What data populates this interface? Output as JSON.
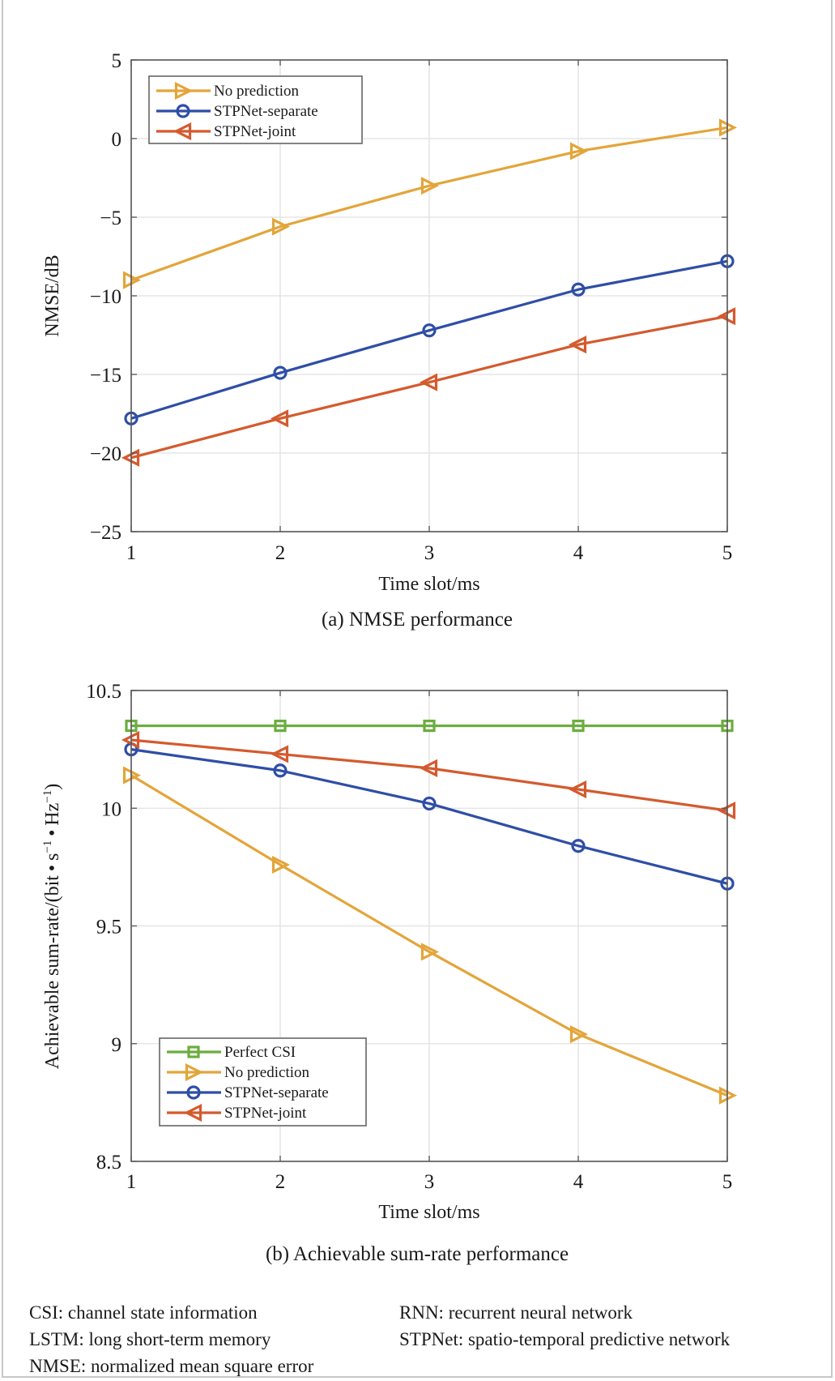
{
  "chart_data": [
    {
      "type": "line",
      "id": "a",
      "title": "",
      "caption": "(a) NMSE performance",
      "xlabel": "Time slot/ms",
      "ylabel": "NMSE/dB",
      "x": [
        1,
        2,
        3,
        4,
        5
      ],
      "xlim": [
        1,
        5
      ],
      "ylim": [
        -25,
        5
      ],
      "xticks": [
        "1",
        "2",
        "3",
        "4",
        "5"
      ],
      "yticks": [
        5,
        0,
        -5,
        -10,
        -15,
        -20,
        -25
      ],
      "ytick_labels": [
        "5",
        "0",
        "−5",
        "−10",
        "−15",
        "−20",
        "−25"
      ],
      "grid": true,
      "legend_position": "top-left",
      "series": [
        {
          "name": "No prediction",
          "color": "#E3A53A",
          "marker": "triangle-right",
          "values": [
            -9.0,
            -5.6,
            -3.0,
            -0.8,
            0.7
          ]
        },
        {
          "name": "STPNet-separate",
          "color": "#2E4EA6",
          "marker": "circle",
          "values": [
            -17.8,
            -14.9,
            -12.2,
            -9.6,
            -7.8
          ]
        },
        {
          "name": "STPNet-joint",
          "color": "#D45A2E",
          "marker": "triangle-left",
          "values": [
            -20.3,
            -17.8,
            -15.5,
            -13.1,
            -11.3
          ]
        }
      ]
    },
    {
      "type": "line",
      "id": "b",
      "title": "",
      "caption": "(b) Achievable sum-rate performance",
      "xlabel": "Time slot/ms",
      "ylabel": "Achievable sum-rate/(bit·s⁻¹·Hz⁻¹)",
      "ylabel_main": "Achievable sum-rate/(bit • s",
      "ylabel_sup1": "−1",
      "ylabel_mid": " • Hz",
      "ylabel_sup2": "−1",
      "ylabel_end": ")",
      "x": [
        1,
        2,
        3,
        4,
        5
      ],
      "xlim": [
        1,
        5
      ],
      "ylim": [
        8.5,
        10.5
      ],
      "xticks": [
        "1",
        "2",
        "3",
        "4",
        "5"
      ],
      "yticks": [
        10.5,
        10,
        9.5,
        9,
        8.5
      ],
      "ytick_labels": [
        "10.5",
        "10",
        "9.5",
        "9",
        "8.5"
      ],
      "grid": true,
      "legend_position": "bottom-left",
      "series": [
        {
          "name": "Perfect CSI",
          "color": "#6BAD3E",
          "marker": "square",
          "values": [
            10.35,
            10.35,
            10.35,
            10.35,
            10.35
          ]
        },
        {
          "name": "No prediction",
          "color": "#E3A53A",
          "marker": "triangle-right",
          "values": [
            10.14,
            9.76,
            9.39,
            9.04,
            8.78
          ]
        },
        {
          "name": "STPNet-separate",
          "color": "#2E4EA6",
          "marker": "circle",
          "values": [
            10.25,
            10.16,
            10.02,
            9.84,
            9.68
          ]
        },
        {
          "name": "STPNet-joint",
          "color": "#D45A2E",
          "marker": "triangle-left",
          "values": [
            10.29,
            10.23,
            10.17,
            10.08,
            9.99
          ]
        }
      ]
    }
  ],
  "footnotes": [
    {
      "abbr": "CSI",
      "text": "CSI: channel state information"
    },
    {
      "abbr": "RNN",
      "text": "RNN: recurrent neural network"
    },
    {
      "abbr": "LSTM",
      "text": "LSTM: long short-term memory"
    },
    {
      "abbr": "STPNet",
      "text": "STPNet: spatio-temporal predictive network"
    },
    {
      "abbr": "NMSE",
      "text": "NMSE: normalized mean square error"
    }
  ]
}
